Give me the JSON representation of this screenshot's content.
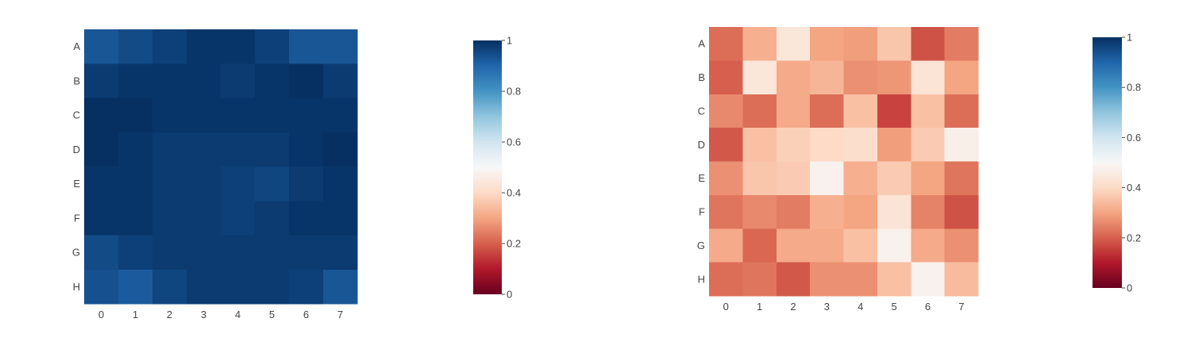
{
  "chart_data": [
    {
      "type": "heatmap",
      "title": "",
      "xlabel": "",
      "ylabel": "",
      "x_categories": [
        "0",
        "1",
        "2",
        "3",
        "4",
        "5",
        "6",
        "7"
      ],
      "y_categories": [
        "A",
        "B",
        "C",
        "D",
        "E",
        "F",
        "G",
        "H"
      ],
      "z": [
        [
          0.93,
          0.95,
          0.97,
          0.99,
          0.99,
          0.97,
          0.93,
          0.93
        ],
        [
          0.98,
          0.99,
          0.99,
          0.99,
          0.98,
          0.99,
          1.0,
          0.98
        ],
        [
          1.0,
          1.0,
          0.99,
          0.99,
          0.99,
          0.99,
          0.99,
          0.99
        ],
        [
          1.0,
          0.99,
          0.98,
          0.98,
          0.98,
          0.98,
          0.99,
          1.0
        ],
        [
          0.99,
          0.99,
          0.98,
          0.98,
          0.97,
          0.96,
          0.98,
          0.99
        ],
        [
          0.99,
          0.99,
          0.98,
          0.98,
          0.97,
          0.98,
          0.99,
          0.99
        ],
        [
          0.95,
          0.97,
          0.98,
          0.98,
          0.98,
          0.98,
          0.98,
          0.98
        ],
        [
          0.94,
          0.92,
          0.96,
          0.98,
          0.98,
          0.98,
          0.97,
          0.93
        ]
      ],
      "colorscale": "RdBu",
      "zrange": [
        0,
        1
      ],
      "colorbar_ticks": [
        "0",
        "0.2",
        "0.4",
        "0.6",
        "0.8",
        "1"
      ]
    },
    {
      "type": "heatmap",
      "title": "",
      "xlabel": "",
      "ylabel": "",
      "x_categories": [
        "0",
        "1",
        "2",
        "3",
        "4",
        "5",
        "6",
        "7"
      ],
      "y_categories": [
        "A",
        "B",
        "C",
        "D",
        "E",
        "F",
        "G",
        "H"
      ],
      "z": [
        [
          0.22,
          0.32,
          0.44,
          0.3,
          0.29,
          0.36,
          0.18,
          0.24
        ],
        [
          0.2,
          0.44,
          0.31,
          0.33,
          0.27,
          0.28,
          0.43,
          0.3
        ],
        [
          0.26,
          0.22,
          0.31,
          0.22,
          0.35,
          0.16,
          0.35,
          0.22
        ],
        [
          0.19,
          0.35,
          0.38,
          0.4,
          0.41,
          0.29,
          0.37,
          0.47
        ],
        [
          0.27,
          0.36,
          0.37,
          0.48,
          0.32,
          0.37,
          0.3,
          0.23
        ],
        [
          0.23,
          0.26,
          0.24,
          0.32,
          0.3,
          0.43,
          0.25,
          0.18
        ],
        [
          0.31,
          0.21,
          0.31,
          0.31,
          0.35,
          0.48,
          0.31,
          0.27
        ],
        [
          0.22,
          0.23,
          0.19,
          0.27,
          0.27,
          0.35,
          0.48,
          0.34
        ]
      ],
      "colorscale": "RdBu",
      "zrange": [
        0,
        1
      ],
      "colorbar_ticks": [
        "0",
        "0.2",
        "0.4",
        "0.6",
        "0.8",
        "1"
      ]
    }
  ]
}
